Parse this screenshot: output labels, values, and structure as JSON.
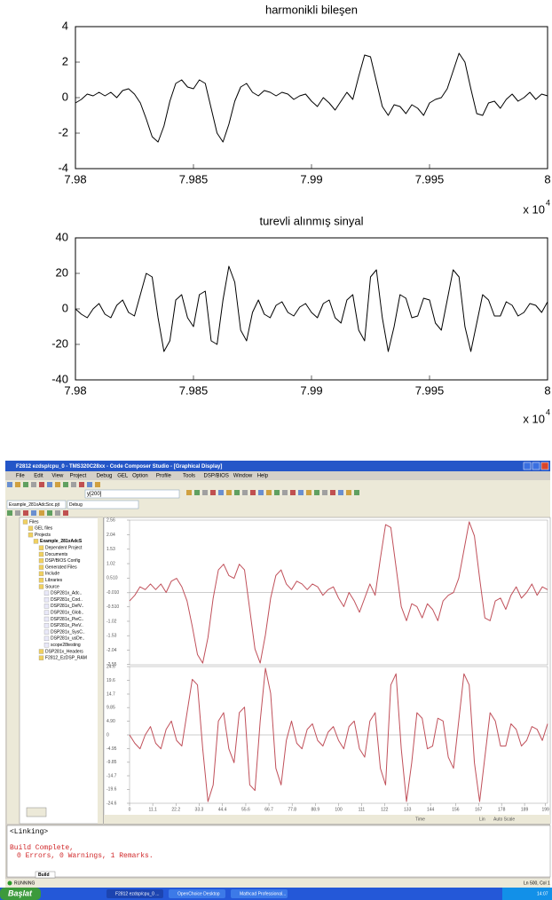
{
  "chart_data": [
    {
      "type": "line",
      "title": "harmonikli bileşen",
      "x": [
        79800,
        79802.5,
        79805,
        79807.5,
        79810,
        79812.5,
        79815,
        79817.5,
        79820,
        79822.5,
        79825,
        79827.5,
        79830,
        79832.5,
        79835,
        79837.5,
        79840,
        79842.5,
        79845,
        79847.5,
        79850,
        79852.5,
        79855,
        79857.5,
        79860,
        79862.5,
        79865,
        79867.5,
        79870,
        79872.5,
        79875,
        79877.5,
        79880,
        79882.5,
        79885,
        79887.5,
        79890,
        79892.5,
        79895,
        79897.5,
        79900,
        79902.5,
        79905,
        79907.5,
        79910,
        79912.5,
        79915,
        79917.5,
        79920,
        79922.5,
        79925,
        79927.5,
        79930,
        79932.5,
        79935,
        79937.5,
        79940,
        79942.5,
        79945,
        79947.5,
        79950,
        79952.5,
        79955,
        79957.5,
        79960,
        79962.5,
        79965,
        79967.5,
        79970,
        79972.5,
        79975,
        79977.5,
        79980,
        79982.5,
        79985,
        79987.5,
        79990,
        79992.5,
        79995,
        79997.5,
        80000
      ],
      "series": [
        {
          "color": "#000000",
          "values": [
            -0.3,
            -0.1,
            0.2,
            0.1,
            0.3,
            0.1,
            0.3,
            0,
            0.4,
            0.5,
            0.2,
            -0.3,
            -1.2,
            -2.2,
            -2.5,
            -1.6,
            -0.2,
            0.8,
            1.0,
            0.6,
            0.5,
            1.0,
            0.8,
            -0.6,
            -2.0,
            -2.5,
            -1.5,
            -0.2,
            0.6,
            0.8,
            0.3,
            0.1,
            0.4,
            0.3,
            0.1,
            0.3,
            0.2,
            -0.1,
            0.1,
            0.2,
            -0.2,
            -0.5,
            0,
            -0.3,
            -0.7,
            -0.2,
            0.3,
            -0.1,
            1.2,
            2.4,
            2.3,
            0.9,
            -0.5,
            -1.0,
            -0.4,
            -0.5,
            -0.9,
            -0.4,
            -0.6,
            -1.0,
            -0.3,
            -0.1,
            0,
            0.5,
            1.5,
            2.5,
            2.0,
            0.5,
            -0.9,
            -1.0,
            -0.3,
            -0.2,
            -0.6,
            -0.1,
            0.2,
            -0.2,
            0,
            0.3,
            -0.1,
            0.2,
            0.1
          ]
        }
      ],
      "xlim": [
        79800,
        80000
      ],
      "xticks": [
        {
          "value": 79800,
          "label": "7.98"
        },
        {
          "value": 79850,
          "label": "7.985"
        },
        {
          "value": 79900,
          "label": "7.99"
        },
        {
          "value": 79950,
          "label": "7.995"
        },
        {
          "value": 80000,
          "label": "8"
        }
      ],
      "ylim": [
        -4,
        4
      ],
      "yticks": [
        -4,
        -2,
        0,
        2,
        4
      ],
      "x_multiplier": "x 10",
      "x_multiplier_exponent": "4"
    },
    {
      "type": "line",
      "title": "turevli alınmış sinyal",
      "x": [
        79800,
        79802.5,
        79805,
        79807.5,
        79810,
        79812.5,
        79815,
        79817.5,
        79820,
        79822.5,
        79825,
        79827.5,
        79830,
        79832.5,
        79835,
        79837.5,
        79840,
        79842.5,
        79845,
        79847.5,
        79850,
        79852.5,
        79855,
        79857.5,
        79860,
        79862.5,
        79865,
        79867.5,
        79870,
        79872.5,
        79875,
        79877.5,
        79880,
        79882.5,
        79885,
        79887.5,
        79890,
        79892.5,
        79895,
        79897.5,
        79900,
        79902.5,
        79905,
        79907.5,
        79910,
        79912.5,
        79915,
        79917.5,
        79920,
        79922.5,
        79925,
        79927.5,
        79930,
        79932.5,
        79935,
        79937.5,
        79940,
        79942.5,
        79945,
        79947.5,
        79950,
        79952.5,
        79955,
        79957.5,
        79960,
        79962.5,
        79965,
        79967.5,
        79970,
        79972.5,
        79975,
        79977.5,
        79980,
        79982.5,
        79985,
        79987.5,
        79990,
        79992.5,
        79995,
        79997.5,
        80000
      ],
      "series": [
        {
          "color": "#000000",
          "values": [
            0,
            -3,
            -5,
            0,
            3,
            -3,
            -5,
            2,
            5,
            -2,
            -4,
            8,
            20,
            18,
            -5,
            -24,
            -18,
            5,
            8,
            -5,
            -10,
            8,
            10,
            -18,
            -20,
            5,
            24,
            15,
            -12,
            -18,
            -2,
            5,
            -3,
            -5,
            2,
            4,
            -2,
            -4,
            1,
            3,
            -2,
            -5,
            3,
            5,
            -5,
            -8,
            5,
            8,
            -12,
            -18,
            18,
            22,
            -5,
            -24,
            -10,
            8,
            6,
            -5,
            -4,
            6,
            5,
            -8,
            -12,
            5,
            22,
            18,
            -10,
            -24,
            -8,
            8,
            5,
            -4,
            -4,
            4,
            2,
            -4,
            -2,
            3,
            2,
            -2,
            4
          ]
        }
      ],
      "xlim": [
        79800,
        80000
      ],
      "xticks": [
        {
          "value": 79800,
          "label": "7.98"
        },
        {
          "value": 79850,
          "label": "7.985"
        },
        {
          "value": 79900,
          "label": "7.99"
        },
        {
          "value": 79950,
          "label": "7.995"
        },
        {
          "value": 80000,
          "label": "8"
        }
      ],
      "ylim": [
        -40,
        40
      ],
      "yticks": [
        -40,
        -20,
        0,
        20,
        40
      ],
      "x_multiplier": "x 10",
      "x_multiplier_exponent": "4"
    },
    {
      "type": "line",
      "x": [
        0,
        2.5,
        5,
        7.5,
        10,
        12.5,
        15,
        17.5,
        20,
        22.5,
        25,
        27.5,
        30,
        32.5,
        35,
        37.5,
        40,
        42.5,
        45,
        47.5,
        50,
        52.5,
        55,
        57.5,
        60,
        62.5,
        65,
        67.5,
        70,
        72.5,
        75,
        77.5,
        80,
        82.5,
        85,
        87.5,
        90,
        92.5,
        95,
        97.5,
        100,
        102.5,
        105,
        107.5,
        110,
        112.5,
        115,
        117.5,
        120,
        122.5,
        125,
        127.5,
        130,
        132.5,
        135,
        137.5,
        140,
        142.5,
        145,
        147.5,
        150,
        152.5,
        155,
        157.5,
        160,
        162.5,
        165,
        167.5,
        170,
        172.5,
        175,
        177.5,
        180,
        182.5,
        185,
        187.5,
        190,
        192.5,
        195,
        197.5,
        200
      ],
      "series": [
        {
          "color": "#c0505a",
          "values": [
            -0.3,
            -0.1,
            0.2,
            0.1,
            0.3,
            0.1,
            0.3,
            0,
            0.4,
            0.5,
            0.2,
            -0.3,
            -1.2,
            -2.2,
            -2.5,
            -1.6,
            -0.2,
            0.8,
            1.0,
            0.6,
            0.5,
            1.0,
            0.8,
            -0.6,
            -2.0,
            -2.5,
            -1.5,
            -0.2,
            0.6,
            0.8,
            0.3,
            0.1,
            0.4,
            0.3,
            0.1,
            0.3,
            0.2,
            -0.1,
            0.1,
            0.2,
            -0.2,
            -0.5,
            0,
            -0.3,
            -0.7,
            -0.2,
            0.3,
            -0.1,
            1.2,
            2.4,
            2.3,
            0.9,
            -0.5,
            -1.0,
            -0.4,
            -0.5,
            -0.9,
            -0.4,
            -0.6,
            -1.0,
            -0.3,
            -0.1,
            0,
            0.5,
            1.5,
            2.5,
            2.0,
            0.5,
            -0.9,
            -1.0,
            -0.3,
            -0.2,
            -0.6,
            -0.1,
            0.2,
            -0.2,
            0,
            0.3,
            -0.1,
            0.2,
            0.1
          ]
        }
      ],
      "xlim": [
        0,
        200
      ],
      "ylim": [
        -2.56,
        2.56
      ],
      "yticks": [
        2.56,
        2.04,
        1.53,
        1.02,
        {
          "value": 0.51,
          "label": "0.510"
        },
        {
          "value": -0.01,
          "label": "-0.010"
        },
        {
          "value": -0.51,
          "label": "-0.510"
        },
        -1.02,
        -1.53,
        -2.04,
        -2.55
      ],
      "zero_line": true
    },
    {
      "type": "line",
      "x": [
        0,
        2.5,
        5,
        7.5,
        10,
        12.5,
        15,
        17.5,
        20,
        22.5,
        25,
        27.5,
        30,
        32.5,
        35,
        37.5,
        40,
        42.5,
        45,
        47.5,
        50,
        52.5,
        55,
        57.5,
        60,
        62.5,
        65,
        67.5,
        70,
        72.5,
        75,
        77.5,
        80,
        82.5,
        85,
        87.5,
        90,
        92.5,
        95,
        97.5,
        100,
        102.5,
        105,
        107.5,
        110,
        112.5,
        115,
        117.5,
        120,
        122.5,
        125,
        127.5,
        130,
        132.5,
        135,
        137.5,
        140,
        142.5,
        145,
        147.5,
        150,
        152.5,
        155,
        157.5,
        160,
        162.5,
        165,
        167.5,
        170,
        172.5,
        175,
        177.5,
        180,
        182.5,
        185,
        187.5,
        190,
        192.5,
        195,
        197.5,
        200
      ],
      "series": [
        {
          "color": "#c0505a",
          "values": [
            0,
            -3,
            -5,
            0,
            3,
            -3,
            -5,
            2,
            5,
            -2,
            -4,
            8,
            20,
            18,
            -5,
            -24,
            -18,
            5,
            8,
            -5,
            -10,
            8,
            10,
            -18,
            -20,
            5,
            24,
            15,
            -12,
            -18,
            -2,
            5,
            -3,
            -5,
            2,
            4,
            -2,
            -4,
            1,
            3,
            -2,
            -5,
            3,
            5,
            -5,
            -8,
            5,
            8,
            -12,
            -18,
            18,
            22,
            -5,
            -24,
            -10,
            8,
            6,
            -5,
            -4,
            6,
            5,
            -8,
            -12,
            5,
            22,
            18,
            -10,
            -24,
            -8,
            8,
            5,
            -4,
            -4,
            4,
            2,
            -4,
            -2,
            3,
            2,
            -2,
            4
          ]
        }
      ],
      "xlim": [
        0,
        200
      ],
      "xticks": [
        0,
        11.1,
        22.2,
        33.3,
        44.4,
        55.6,
        66.7,
        77.8,
        88.9,
        100,
        111,
        122,
        133,
        144,
        156,
        167,
        178,
        189,
        199
      ],
      "ylim": [
        -24.6,
        24.6
      ],
      "yticks": [
        24.6,
        19.6,
        14.7,
        9.85,
        {
          "value": 4.9,
          "label": "4.90"
        },
        0,
        -4.95,
        -9.85,
        -14.7,
        -19.6,
        -24.6
      ],
      "zero_line": true
    }
  ],
  "window": {
    "title": "F2812 ezdsp/cpu_0 - TMS320C28xx - Code Composer Studio - [Graphical Display]",
    "menu": [
      "File",
      "Edit",
      "View",
      "Project",
      "Debug",
      "GEL",
      "Option",
      "Profile",
      "Tools",
      "DSP/BIOS",
      "Window",
      "Help"
    ],
    "watch": "y[200]",
    "project": "Example_281xAdcSoc.pjt",
    "config": "Debug",
    "tree": [
      "Files",
      "GEL files",
      "Projects",
      "Example_281xAdcS",
      "Dependent Project",
      "Documents",
      "DSP/BIOS Config",
      "Generated Files",
      "Include",
      "Libraries",
      "Source",
      "DSP281x_Adc..",
      "DSP281x_Cod..",
      "DSP281x_DefV..",
      "DSP281x_Glob..",
      "DSP281x_PieC..",
      "DSP281x_PieV..",
      "DSP281x_SysC..",
      "DSP281x_usDe..",
      "scope28testing",
      "DSP281x_Headers",
      "F2812_EzDSP_RAM"
    ],
    "graph_footer": [
      "Time",
      "Lin",
      "Auto Scale"
    ],
    "output": [
      "<Linking>",
      "Build Complete,",
      "0 Errors, 0 Warnings, 1 Remarks."
    ],
    "output_tab": "Build",
    "status_left": "RUNNING",
    "status_right": "Ln 500, Col 1",
    "taskbar": {
      "start": "Başlat",
      "items": [
        "F2812 ezdsp/cpu_0 ...",
        "OpenChoice Desktop",
        "Mathcad Professional..."
      ],
      "clock": "14:07"
    }
  }
}
